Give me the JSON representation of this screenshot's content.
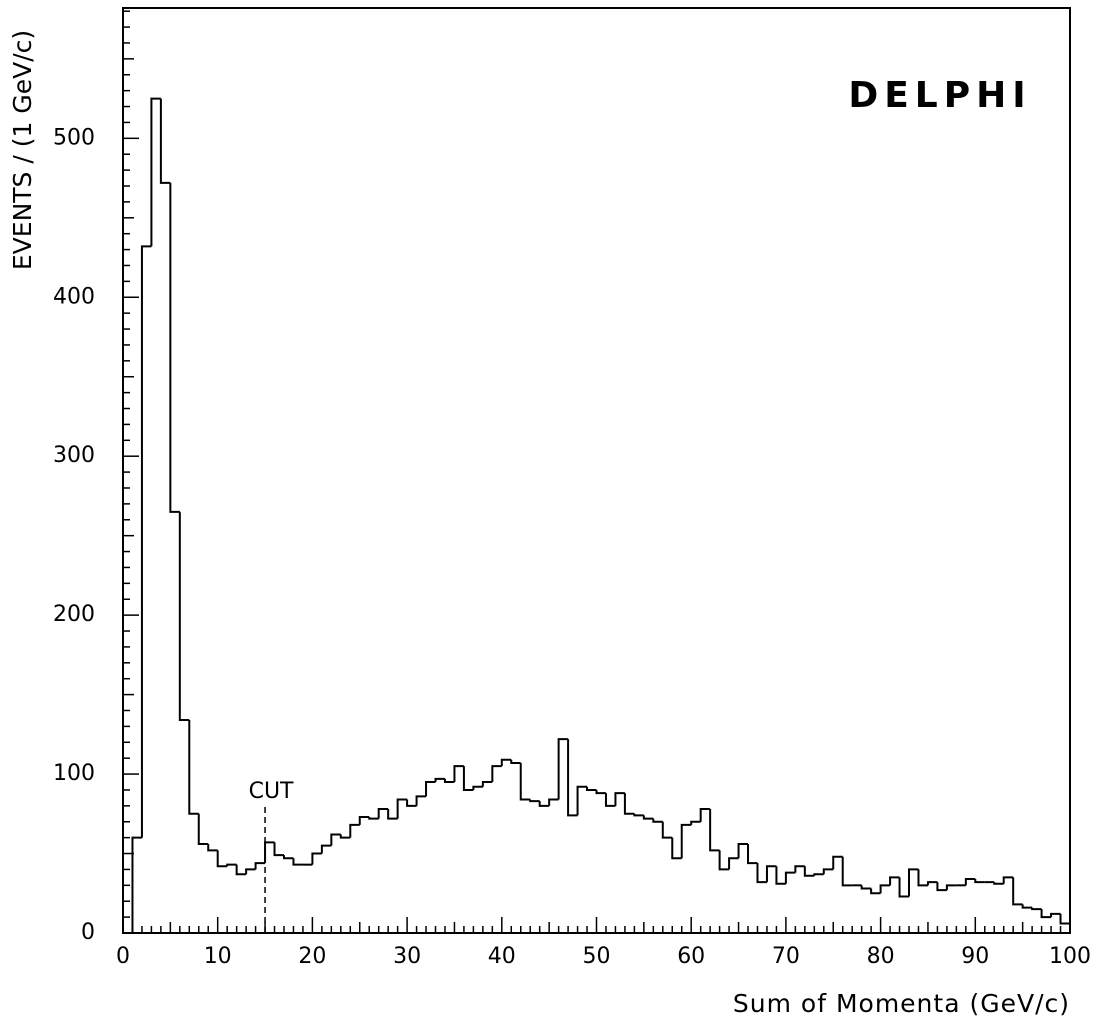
{
  "chart_data": {
    "type": "histogram",
    "title": "DELPHI",
    "xlabel": "Sum of Momenta (GeV/c)",
    "ylabel": "EVENTS / (1 GeV/c)",
    "bins": [
      0,
      1,
      2,
      3,
      4,
      5,
      6,
      7,
      8,
      9,
      10,
      11,
      12,
      13,
      14,
      15,
      16,
      17,
      18,
      19,
      20,
      21,
      22,
      23,
      24,
      25,
      26,
      27,
      28,
      29,
      30,
      31,
      32,
      33,
      34,
      35,
      36,
      37,
      38,
      39,
      40,
      41,
      42,
      43,
      44,
      45,
      46,
      47,
      48,
      49,
      50,
      51,
      52,
      53,
      54,
      55,
      56,
      57,
      58,
      59,
      60,
      61,
      62,
      63,
      64,
      65,
      66,
      67,
      68,
      69,
      70,
      71,
      72,
      73,
      74,
      75,
      76,
      77,
      78,
      79,
      80,
      81,
      82,
      83,
      84,
      85,
      86,
      87,
      88,
      89,
      90,
      91,
      92,
      93,
      94,
      95,
      96,
      97,
      98,
      99,
      100
    ],
    "counts": [
      0,
      60,
      432,
      525,
      472,
      265,
      134,
      75,
      56,
      52,
      42,
      43,
      37,
      40,
      44,
      57,
      49,
      47,
      43,
      43,
      50,
      55,
      62,
      60,
      68,
      73,
      72,
      78,
      72,
      84,
      80,
      86,
      95,
      97,
      95,
      105,
      90,
      92,
      95,
      105,
      109,
      107,
      84,
      83,
      80,
      84,
      122,
      74,
      92,
      90,
      88,
      80,
      88,
      75,
      74,
      72,
      70,
      60,
      47,
      68,
      70,
      78,
      52,
      40,
      47,
      56,
      44,
      32,
      42,
      31,
      38,
      42,
      36,
      37,
      40,
      48,
      30,
      30,
      28,
      25,
      30,
      35,
      23,
      40,
      30,
      32,
      27,
      30,
      30,
      34,
      32,
      32,
      31,
      35,
      18,
      16,
      15,
      10,
      12,
      6
    ],
    "color": "#000000",
    "xlim": [
      0,
      100
    ],
    "xticks": [
      0,
      10,
      20,
      30,
      40,
      50,
      60,
      70,
      80,
      90,
      100
    ],
    "ylim": [
      0,
      582
    ],
    "yticks": [
      0,
      100,
      200,
      300,
      400,
      500
    ],
    "annotations": [
      {
        "text": "CUT",
        "x": 15
      }
    ]
  }
}
